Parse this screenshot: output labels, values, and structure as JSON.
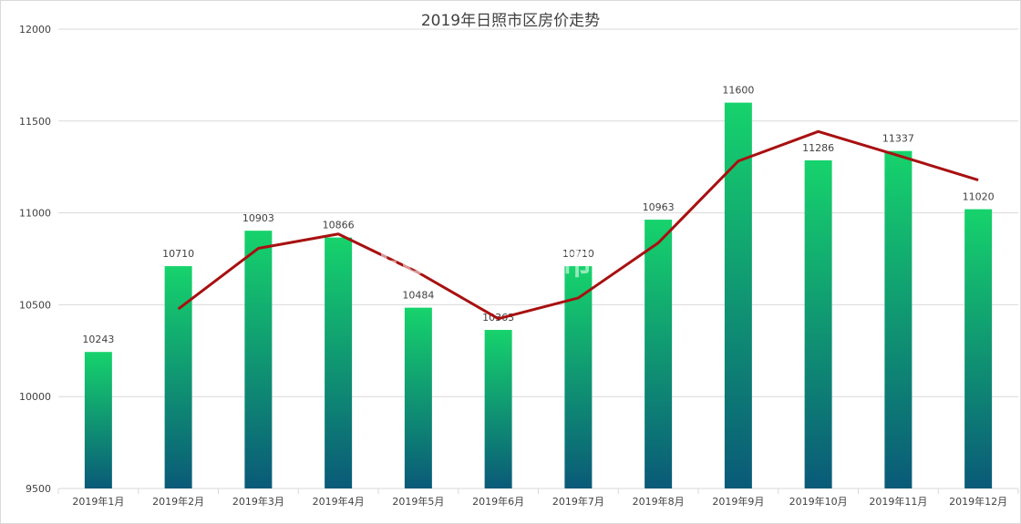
{
  "chart_data": {
    "type": "bar",
    "title": "2019年日照市区房价走势",
    "categories": [
      "2019年1月",
      "2019年2月",
      "2019年3月",
      "2019年4月",
      "2019年5月",
      "2019年6月",
      "2019年7月",
      "2019年8月",
      "2019年9月",
      "2019年10月",
      "2019年11月",
      "2019年12月"
    ],
    "values": [
      10243,
      10710,
      10903,
      10866,
      10484,
      10363,
      10710,
      10963,
      11600,
      11286,
      11337,
      11020
    ],
    "value_labels": [
      "10243",
      "10710",
      "10903",
      "10866",
      "10484",
      "10363",
      "10710",
      "10963",
      "11600",
      "11286",
      "11337",
      "11020"
    ],
    "trendline": {
      "type": "moving-average-2",
      "values": [
        null,
        10477,
        10807,
        10885,
        10675,
        10424,
        10537,
        10837,
        11282,
        11443,
        11312,
        11179
      ]
    },
    "ylim": [
      9500,
      12000
    ],
    "yticks": [
      9500,
      10000,
      10500,
      11000,
      11500,
      12000
    ],
    "ytick_labels": [
      "9500",
      "10000",
      "10500",
      "11000",
      "11500",
      "12000"
    ],
    "grid": true,
    "legend": "none",
    "colors": {
      "bar_top": "#16d36c",
      "bar_bottom": "#0a5a78",
      "trend": "#a81010",
      "grid": "#d9d9d9",
      "text": "#404040"
    }
  },
  "watermark": {
    "text": "FCS 房产超市",
    "sub": "fccs.com"
  }
}
